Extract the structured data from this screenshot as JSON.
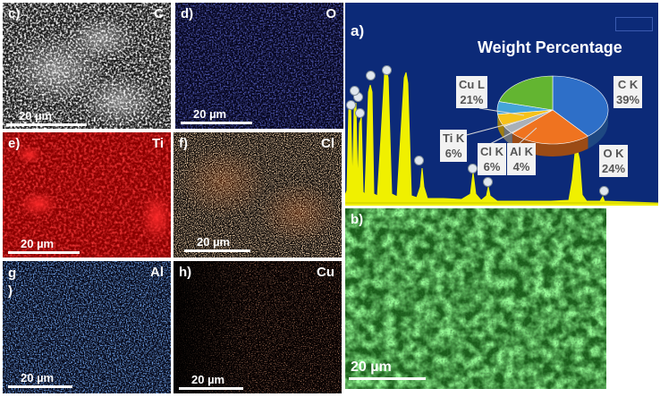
{
  "figure": {
    "panels": {
      "a": {
        "label": "a)",
        "title": "Weight Percentage"
      },
      "b": {
        "label": "b)",
        "scale": "20 µm"
      },
      "c": {
        "label": "c)",
        "element": "C",
        "scale": "20 µm"
      },
      "d": {
        "label": "d)",
        "element": "O",
        "scale": "20 µm"
      },
      "e": {
        "label": "e)",
        "element": "Ti",
        "scale": "20 µm"
      },
      "f": {
        "label": "f)",
        "element": "Cl",
        "scale": "20 µm"
      },
      "g": {
        "label": "g\n)",
        "element": "Al",
        "scale": "20 µm"
      },
      "h": {
        "label": "h)",
        "element": "Cu",
        "scale": "20 µm"
      }
    }
  },
  "chart_data": {
    "type": "pie",
    "title": "Weight Percentage",
    "slices": [
      {
        "label": "C K",
        "value": 39,
        "display": "39%",
        "color": "#2e6fc8"
      },
      {
        "label": "O K",
        "value": 24,
        "display": "24%",
        "color": "#ef7320"
      },
      {
        "label": "Al K",
        "value": 4,
        "display": "4%",
        "color": "#a9b0b8"
      },
      {
        "label": "Cl K",
        "value": 6,
        "display": "6%",
        "color": "#f6c21a"
      },
      {
        "label": "Ti K",
        "value": 6,
        "display": "6%",
        "color": "#45a4d8"
      },
      {
        "label": "Cu L",
        "value": 21,
        "display": "21%",
        "color": "#63b531"
      }
    ]
  }
}
